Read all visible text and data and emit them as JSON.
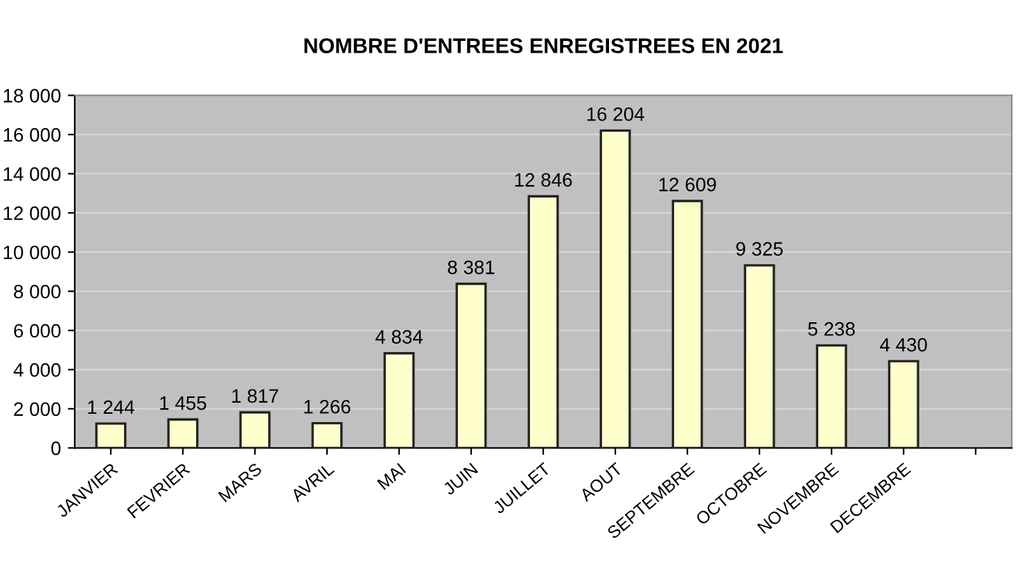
{
  "chart_data": {
    "type": "bar",
    "title": "NOMBRE D'ENTREES ENREGISTREES EN 2021",
    "categories": [
      "JANVIER",
      "FEVRIER",
      "MARS",
      "AVRIL",
      "MAI",
      "JUIN",
      "JUILLET",
      "AOUT",
      "SEPTEMBRE",
      "OCTOBRE",
      "NOVEMBRE",
      "DECEMBRE",
      null
    ],
    "values": [
      1244,
      1455,
      1817,
      1266,
      4834,
      8381,
      12846,
      16204,
      12609,
      9325,
      5238,
      4430,
      null
    ],
    "value_labels": [
      "1 244",
      "1 455",
      "1 817",
      "1 266",
      "4 834",
      "8 381",
      "12 846",
      "16 204",
      "12 609",
      "9 325",
      "5 238",
      "4 430",
      null
    ],
    "color": "#ffffcc",
    "ylim": [
      0,
      18000
    ],
    "yticks": [
      {
        "value": 0,
        "label": "0"
      },
      {
        "value": 2000,
        "label": "2 000"
      },
      {
        "value": 4000,
        "label": "4 000"
      },
      {
        "value": 6000,
        "label": "6 000"
      },
      {
        "value": 8000,
        "label": "8 000"
      },
      {
        "value": 10000,
        "label": "10 000"
      },
      {
        "value": 12000,
        "label": "12 000"
      },
      {
        "value": 14000,
        "label": "14 000"
      },
      {
        "value": 16000,
        "label": "16 000"
      },
      {
        "value": 18000,
        "label": "18 000"
      }
    ],
    "grid": "y"
  }
}
